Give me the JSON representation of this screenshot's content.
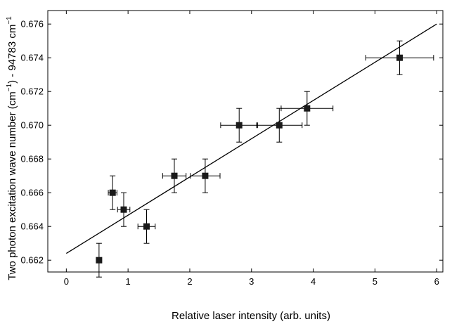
{
  "chart_data": {
    "type": "scatter",
    "xlabel": "Relative laser intensity (arb. units)",
    "ylabel_parts": [
      "Two photon excitation wave number (cm",
      "−1",
      ") - 94783 cm",
      "−1"
    ],
    "xlim": [
      -0.3,
      6.1
    ],
    "ylim": [
      0.6613,
      0.6768
    ],
    "xticks": [
      0,
      1,
      2,
      3,
      4,
      5,
      6
    ],
    "yticks": [
      0.662,
      0.664,
      0.666,
      0.668,
      0.67,
      0.672,
      0.674,
      0.676
    ],
    "xtick_labels": [
      "0",
      "1",
      "2",
      "3",
      "4",
      "5",
      "6"
    ],
    "ytick_labels": [
      "0.662",
      "0.664",
      "0.666",
      "0.668",
      "0.670",
      "0.672",
      "0.674",
      "0.676"
    ],
    "points": [
      {
        "x": 0.53,
        "y": 0.662,
        "xerr": 0.03,
        "yerr": 0.001
      },
      {
        "x": 0.75,
        "y": 0.666,
        "xerr": 0.07,
        "yerr": 0.001
      },
      {
        "x": 0.93,
        "y": 0.665,
        "xerr": 0.1,
        "yerr": 0.001
      },
      {
        "x": 1.3,
        "y": 0.664,
        "xerr": 0.14,
        "yerr": 0.001
      },
      {
        "x": 1.75,
        "y": 0.667,
        "xerr": 0.19,
        "yerr": 0.001
      },
      {
        "x": 2.25,
        "y": 0.667,
        "xerr": 0.24,
        "yerr": 0.001
      },
      {
        "x": 2.8,
        "y": 0.67,
        "xerr": 0.3,
        "yerr": 0.001
      },
      {
        "x": 3.45,
        "y": 0.67,
        "xerr": 0.37,
        "yerr": 0.001
      },
      {
        "x": 3.9,
        "y": 0.671,
        "xerr": 0.42,
        "yerr": 0.001
      },
      {
        "x": 5.4,
        "y": 0.674,
        "xerr": 0.55,
        "yerr": 0.001
      }
    ],
    "fit_line": {
      "x": [
        0,
        6
      ],
      "y": [
        0.6624,
        0.676
      ]
    },
    "grid": false,
    "marker_color": "#1a1a1a",
    "line_color": "#000000"
  }
}
